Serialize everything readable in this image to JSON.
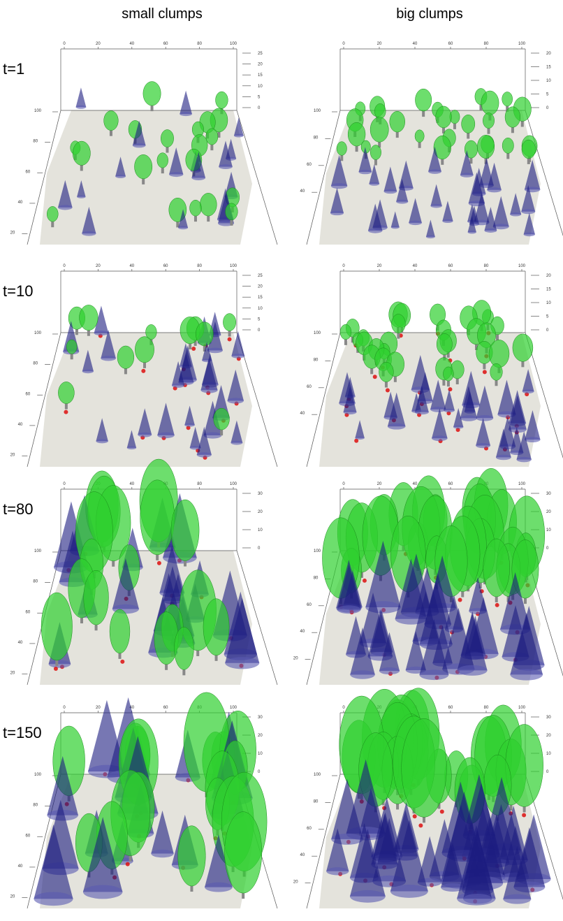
{
  "header": {
    "columns": [
      "small clumps",
      "big clumps"
    ]
  },
  "rows": [
    {
      "label": "t=1",
      "panels": [
        {
          "x_ticks": [
            "0",
            "20",
            "40",
            "60",
            "80",
            "100"
          ],
          "z_ticks": [
            "25",
            "20",
            "15",
            "10",
            "5",
            "0"
          ],
          "y_ticks": [
            "100",
            "80",
            "60",
            "40",
            "20"
          ]
        },
        {
          "x_ticks": [
            "0",
            "20",
            "40",
            "60",
            "80",
            "100"
          ],
          "z_ticks": [
            "20",
            "15",
            "10",
            "5",
            "0"
          ],
          "y_ticks": [
            "100",
            "80",
            "60",
            "40"
          ]
        }
      ]
    },
    {
      "label": "t=10",
      "panels": [
        {
          "x_ticks": [
            "0",
            "20",
            "40",
            "60",
            "80",
            "100"
          ],
          "z_ticks": [
            "25",
            "20",
            "15",
            "10",
            "5",
            "0"
          ],
          "y_ticks": [
            "100",
            "80",
            "60",
            "40",
            "20"
          ]
        },
        {
          "x_ticks": [
            "0",
            "20",
            "40",
            "60",
            "80",
            "100"
          ],
          "z_ticks": [
            "20",
            "15",
            "10",
            "5",
            "0"
          ],
          "y_ticks": [
            "100",
            "80",
            "60",
            "40"
          ]
        }
      ]
    },
    {
      "label": "t=80",
      "panels": [
        {
          "x_ticks": [
            "0",
            "20",
            "40",
            "60",
            "80",
            "100"
          ],
          "z_ticks": [
            "30",
            "20",
            "10",
            "0"
          ],
          "y_ticks": [
            "100",
            "80",
            "60",
            "40",
            "20"
          ]
        },
        {
          "x_ticks": [
            "0",
            "20",
            "40",
            "60",
            "80",
            "100"
          ],
          "z_ticks": [
            "30",
            "20",
            "10",
            "0"
          ],
          "y_ticks": [
            "100",
            "80",
            "60",
            "40",
            "20"
          ]
        }
      ]
    },
    {
      "label": "t=150",
      "panels": [
        {
          "x_ticks": [
            "0",
            "20",
            "40",
            "60",
            "80",
            "100"
          ],
          "z_ticks": [
            "30",
            "20",
            "10",
            "0"
          ],
          "y_ticks": [
            "100",
            "80",
            "60",
            "40",
            "20"
          ]
        },
        {
          "x_ticks": [
            "0",
            "20",
            "40",
            "60",
            "80",
            "100"
          ],
          "z_ticks": [
            "30",
            "20",
            "10",
            "0"
          ],
          "y_ticks": [
            "100",
            "80",
            "60",
            "40",
            "20"
          ]
        }
      ]
    }
  ]
}
